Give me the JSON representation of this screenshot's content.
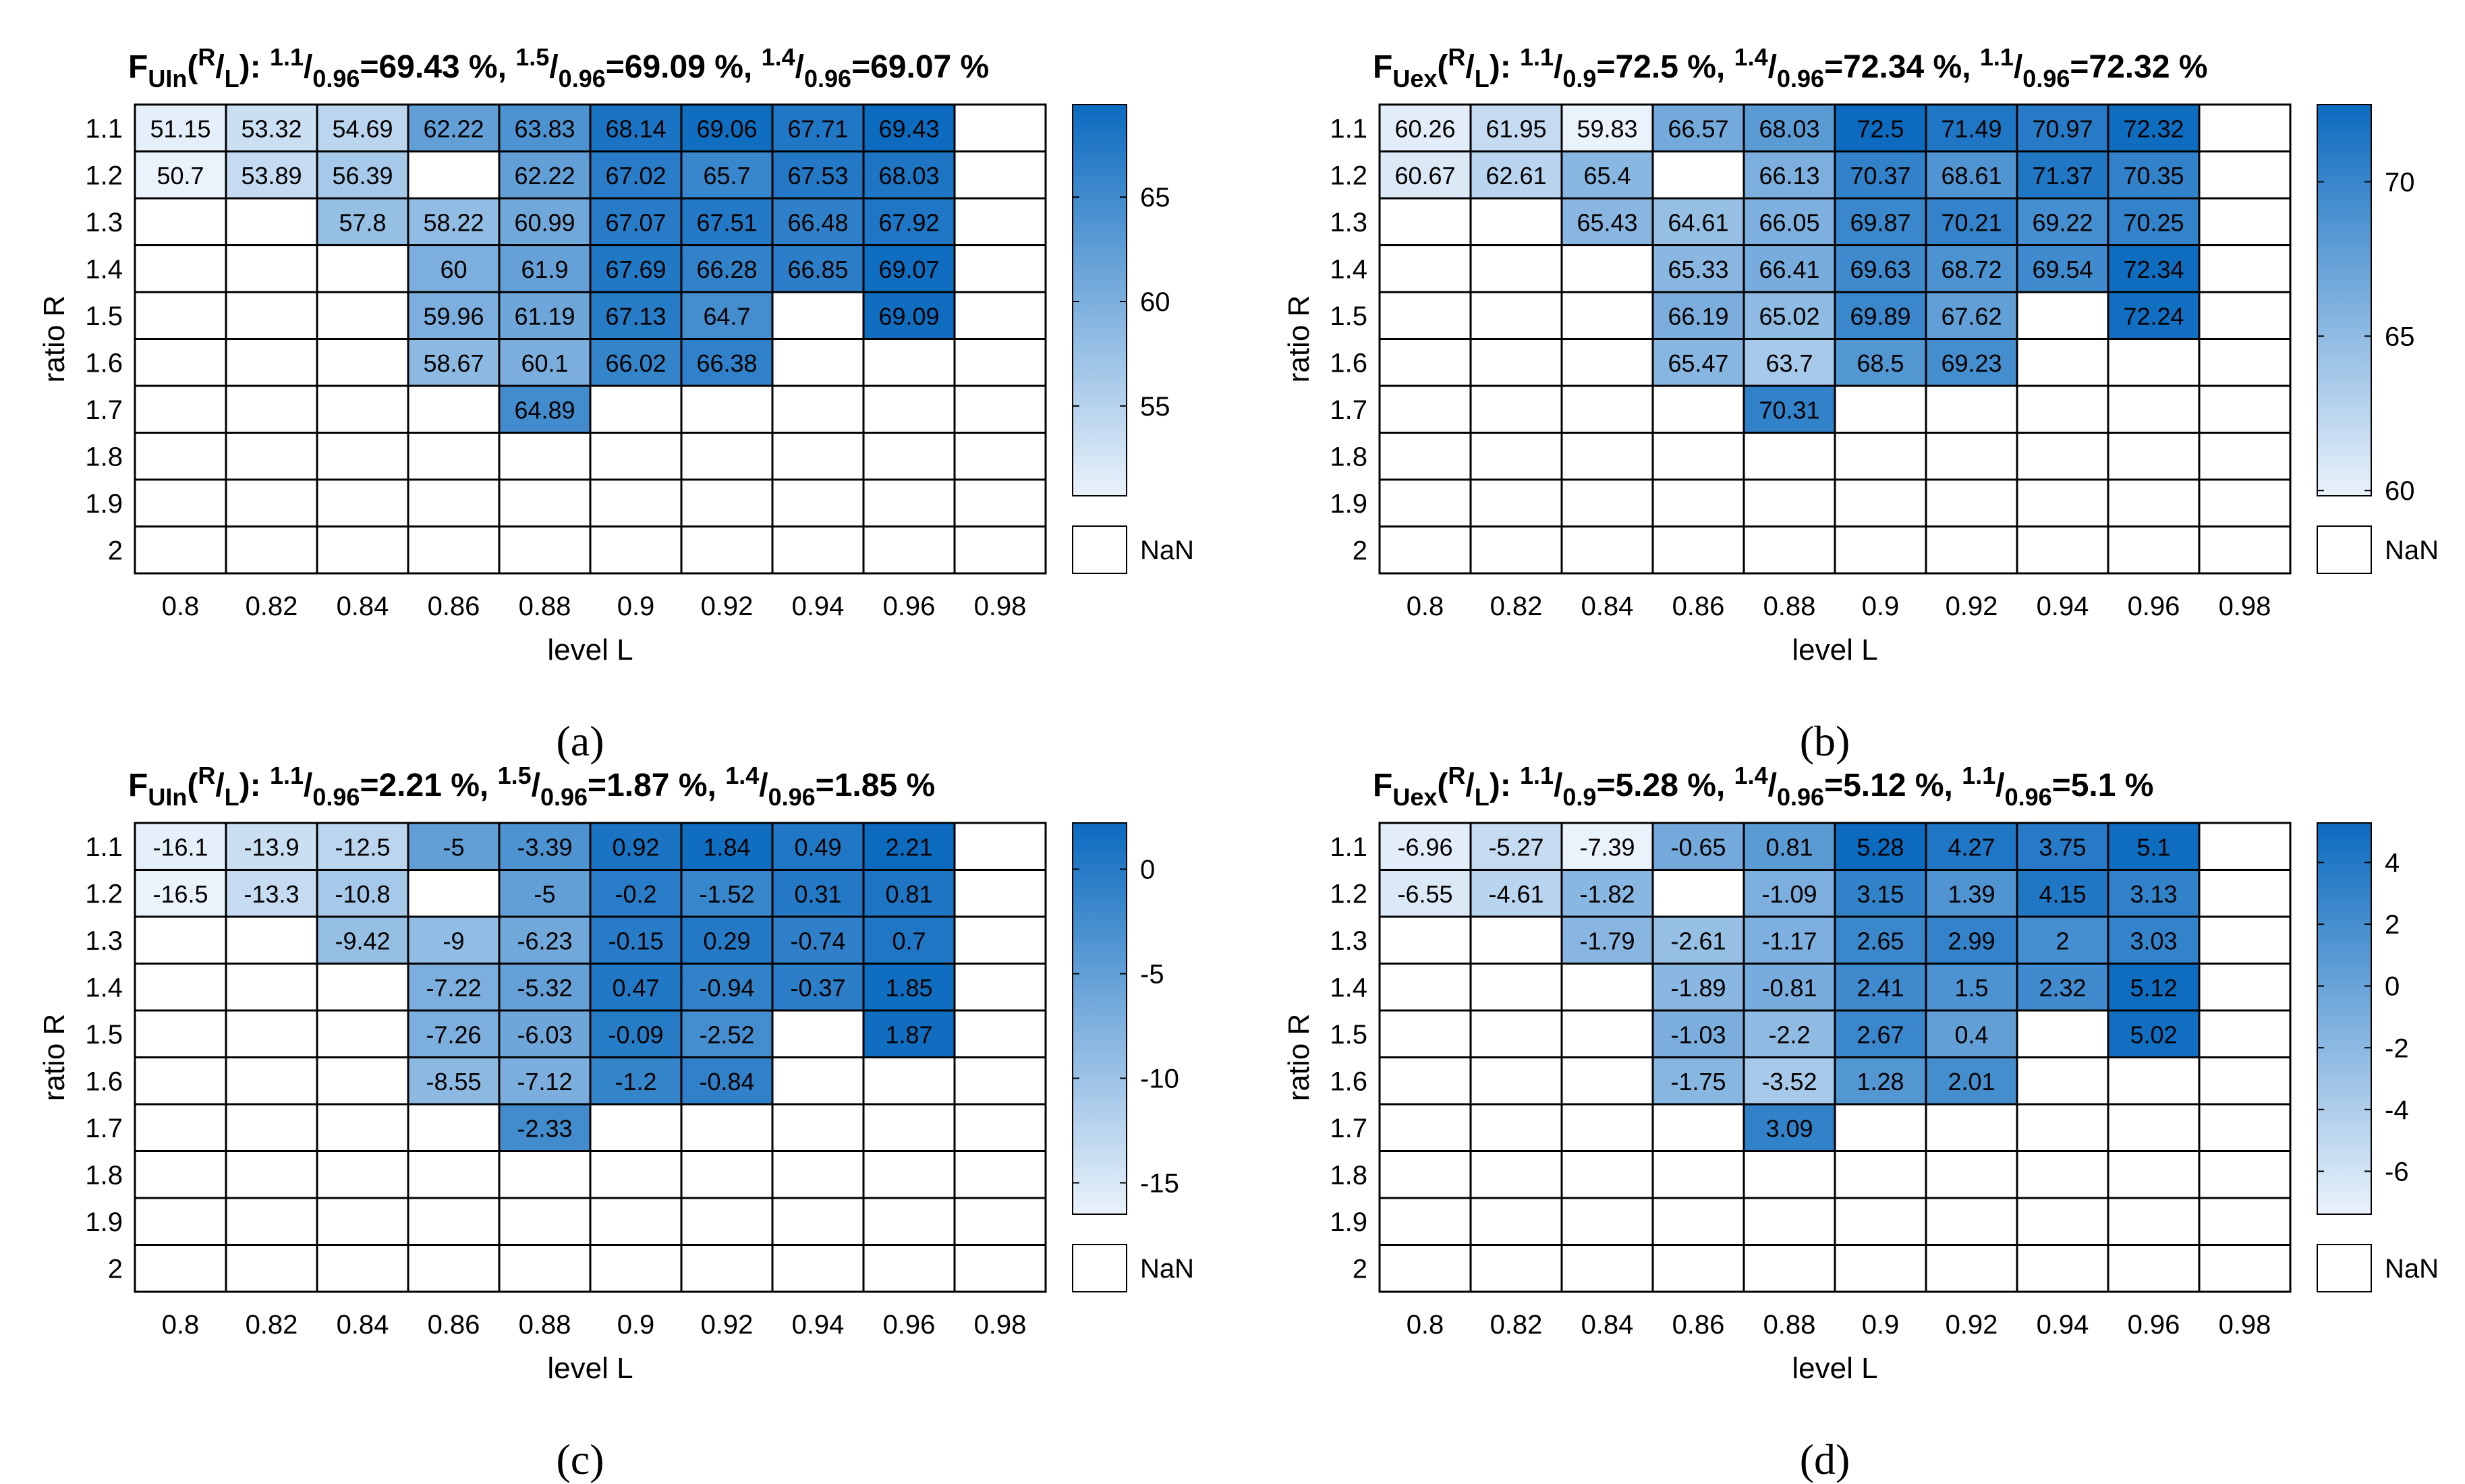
{
  "colors": {
    "light": "#eaf2fb",
    "dark": "#0c6bbf",
    "grid": "#000000",
    "nan": "#ffffff",
    "text_dark": "#000000",
    "text_light": "#ffffff"
  },
  "chart_data": [
    {
      "type": "heatmap",
      "panel": "(a)",
      "title_parts": [
        {
          "t": "F",
          "s": "normal"
        },
        {
          "t": "UIn",
          "s": "sub"
        },
        {
          "t": "(",
          "s": "normal"
        },
        {
          "t": "R",
          "s": "sup"
        },
        {
          "t": "/",
          "s": "normal"
        },
        {
          "t": "L",
          "s": "sub"
        },
        {
          "t": "): ",
          "s": "normal"
        },
        {
          "t": "1.1",
          "s": "sup"
        },
        {
          "t": "/",
          "s": "normal"
        },
        {
          "t": "0.96",
          "s": "sub"
        },
        {
          "t": "=69.43 %, ",
          "s": "normal"
        },
        {
          "t": "1.5",
          "s": "sup"
        },
        {
          "t": "/",
          "s": "normal"
        },
        {
          "t": "0.96",
          "s": "sub"
        },
        {
          "t": "=69.09 %, ",
          "s": "normal"
        },
        {
          "t": "1.4",
          "s": "sup"
        },
        {
          "t": "/",
          "s": "normal"
        },
        {
          "t": "0.96",
          "s": "sub"
        },
        {
          "t": "=69.07 %",
          "s": "normal"
        }
      ],
      "xlabel": "level L",
      "ylabel": "ratio R",
      "x_ticks": [
        "0.8",
        "0.82",
        "0.84",
        "0.86",
        "0.88",
        "0.9",
        "0.92",
        "0.94",
        "0.96",
        "0.98"
      ],
      "y_ticks": [
        "1.1",
        "1.2",
        "1.3",
        "1.4",
        "1.5",
        "1.6",
        "1.7",
        "1.8",
        "1.9",
        "2"
      ],
      "values": [
        [
          "51.15",
          "53.32",
          "54.69",
          "62.22",
          "63.83",
          "68.14",
          "69.06",
          "67.71",
          "69.43",
          null
        ],
        [
          "50.7",
          "53.89",
          "56.39",
          null,
          "62.22",
          "67.02",
          "65.7",
          "67.53",
          "68.03",
          null
        ],
        [
          null,
          null,
          "57.8",
          "58.22",
          "60.99",
          "67.07",
          "67.51",
          "66.48",
          "67.92",
          null
        ],
        [
          null,
          null,
          null,
          "60",
          "61.9",
          "67.69",
          "66.28",
          "66.85",
          "69.07",
          null
        ],
        [
          null,
          null,
          null,
          "59.96",
          "61.19",
          "67.13",
          "64.7",
          null,
          "69.09",
          null
        ],
        [
          null,
          null,
          null,
          "58.67",
          "60.1",
          "66.02",
          "66.38",
          null,
          null,
          null
        ],
        [
          null,
          null,
          null,
          null,
          "64.89",
          null,
          null,
          null,
          null,
          null
        ],
        [
          null,
          null,
          null,
          null,
          null,
          null,
          null,
          null,
          null,
          null
        ],
        [
          null,
          null,
          null,
          null,
          null,
          null,
          null,
          null,
          null,
          null
        ],
        [
          null,
          null,
          null,
          null,
          null,
          null,
          null,
          null,
          null,
          null
        ]
      ],
      "color_range": [
        50.7,
        69.43
      ],
      "colorbar_ticks": [
        "55",
        "60",
        "65"
      ],
      "nan_label": "NaN"
    },
    {
      "type": "heatmap",
      "panel": "(b)",
      "title_parts": [
        {
          "t": "F",
          "s": "normal"
        },
        {
          "t": "Uex",
          "s": "sub"
        },
        {
          "t": "(",
          "s": "normal"
        },
        {
          "t": "R",
          "s": "sup"
        },
        {
          "t": "/",
          "s": "normal"
        },
        {
          "t": "L",
          "s": "sub"
        },
        {
          "t": "): ",
          "s": "normal"
        },
        {
          "t": "1.1",
          "s": "sup"
        },
        {
          "t": "/",
          "s": "normal"
        },
        {
          "t": "0.9",
          "s": "sub"
        },
        {
          "t": "=72.5 %, ",
          "s": "normal"
        },
        {
          "t": "1.4",
          "s": "sup"
        },
        {
          "t": "/",
          "s": "normal"
        },
        {
          "t": "0.96",
          "s": "sub"
        },
        {
          "t": "=72.34 %, ",
          "s": "normal"
        },
        {
          "t": "1.1",
          "s": "sup"
        },
        {
          "t": "/",
          "s": "normal"
        },
        {
          "t": "0.96",
          "s": "sub"
        },
        {
          "t": "=72.32 %",
          "s": "normal"
        }
      ],
      "xlabel": "level L",
      "ylabel": "ratio R",
      "x_ticks": [
        "0.8",
        "0.82",
        "0.84",
        "0.86",
        "0.88",
        "0.9",
        "0.92",
        "0.94",
        "0.96",
        "0.98"
      ],
      "y_ticks": [
        "1.1",
        "1.2",
        "1.3",
        "1.4",
        "1.5",
        "1.6",
        "1.7",
        "1.8",
        "1.9",
        "2"
      ],
      "values": [
        [
          "60.26",
          "61.95",
          "59.83",
          "66.57",
          "68.03",
          "72.5",
          "71.49",
          "70.97",
          "72.32",
          null
        ],
        [
          "60.67",
          "62.61",
          "65.4",
          null,
          "66.13",
          "70.37",
          "68.61",
          "71.37",
          "70.35",
          null
        ],
        [
          null,
          null,
          "65.43",
          "64.61",
          "66.05",
          "69.87",
          "70.21",
          "69.22",
          "70.25",
          null
        ],
        [
          null,
          null,
          null,
          "65.33",
          "66.41",
          "69.63",
          "68.72",
          "69.54",
          "72.34",
          null
        ],
        [
          null,
          null,
          null,
          "66.19",
          "65.02",
          "69.89",
          "67.62",
          null,
          "72.24",
          null
        ],
        [
          null,
          null,
          null,
          "65.47",
          "63.7",
          "68.5",
          "69.23",
          null,
          null,
          null
        ],
        [
          null,
          null,
          null,
          null,
          "70.31",
          null,
          null,
          null,
          null,
          null
        ],
        [
          null,
          null,
          null,
          null,
          null,
          null,
          null,
          null,
          null,
          null
        ],
        [
          null,
          null,
          null,
          null,
          null,
          null,
          null,
          null,
          null,
          null
        ],
        [
          null,
          null,
          null,
          null,
          null,
          null,
          null,
          null,
          null,
          null
        ]
      ],
      "color_range": [
        59.83,
        72.5
      ],
      "colorbar_ticks": [
        "60",
        "65",
        "70"
      ],
      "nan_label": "NaN"
    },
    {
      "type": "heatmap",
      "panel": "(c)",
      "title_parts": [
        {
          "t": "F",
          "s": "normal"
        },
        {
          "t": "UIn",
          "s": "sub"
        },
        {
          "t": "(",
          "s": "normal"
        },
        {
          "t": "R",
          "s": "sup"
        },
        {
          "t": "/",
          "s": "normal"
        },
        {
          "t": "L",
          "s": "sub"
        },
        {
          "t": "): ",
          "s": "normal"
        },
        {
          "t": "1.1",
          "s": "sup"
        },
        {
          "t": "/",
          "s": "normal"
        },
        {
          "t": "0.96",
          "s": "sub"
        },
        {
          "t": "=2.21 %, ",
          "s": "normal"
        },
        {
          "t": "1.5",
          "s": "sup"
        },
        {
          "t": "/",
          "s": "normal"
        },
        {
          "t": "0.96",
          "s": "sub"
        },
        {
          "t": "=1.87 %, ",
          "s": "normal"
        },
        {
          "t": "1.4",
          "s": "sup"
        },
        {
          "t": "/",
          "s": "normal"
        },
        {
          "t": "0.96",
          "s": "sub"
        },
        {
          "t": "=1.85 %",
          "s": "normal"
        }
      ],
      "xlabel": "level L",
      "ylabel": "ratio R",
      "x_ticks": [
        "0.8",
        "0.82",
        "0.84",
        "0.86",
        "0.88",
        "0.9",
        "0.92",
        "0.94",
        "0.96",
        "0.98"
      ],
      "y_ticks": [
        "1.1",
        "1.2",
        "1.3",
        "1.4",
        "1.5",
        "1.6",
        "1.7",
        "1.8",
        "1.9",
        "2"
      ],
      "values": [
        [
          "-16.1",
          "-13.9",
          "-12.5",
          "-5",
          "-3.39",
          "0.92",
          "1.84",
          "0.49",
          "2.21",
          null
        ],
        [
          "-16.5",
          "-13.3",
          "-10.8",
          null,
          "-5",
          "-0.2",
          "-1.52",
          "0.31",
          "0.81",
          null
        ],
        [
          null,
          null,
          "-9.42",
          "-9",
          "-6.23",
          "-0.15",
          "0.29",
          "-0.74",
          "0.7",
          null
        ],
        [
          null,
          null,
          null,
          "-7.22",
          "-5.32",
          "0.47",
          "-0.94",
          "-0.37",
          "1.85",
          null
        ],
        [
          null,
          null,
          null,
          "-7.26",
          "-6.03",
          "-0.09",
          "-2.52",
          null,
          "1.87",
          null
        ],
        [
          null,
          null,
          null,
          "-8.55",
          "-7.12",
          "-1.2",
          "-0.84",
          null,
          null,
          null
        ],
        [
          null,
          null,
          null,
          null,
          "-2.33",
          null,
          null,
          null,
          null,
          null
        ],
        [
          null,
          null,
          null,
          null,
          null,
          null,
          null,
          null,
          null,
          null
        ],
        [
          null,
          null,
          null,
          null,
          null,
          null,
          null,
          null,
          null,
          null
        ],
        [
          null,
          null,
          null,
          null,
          null,
          null,
          null,
          null,
          null,
          null
        ]
      ],
      "color_range": [
        -16.5,
        2.21
      ],
      "colorbar_ticks": [
        "0",
        "-5",
        "-10",
        "-15"
      ],
      "nan_label": "NaN"
    },
    {
      "type": "heatmap",
      "panel": "(d)",
      "title_parts": [
        {
          "t": "F",
          "s": "normal"
        },
        {
          "t": "Uex",
          "s": "sub"
        },
        {
          "t": "(",
          "s": "normal"
        },
        {
          "t": "R",
          "s": "sup"
        },
        {
          "t": "/",
          "s": "normal"
        },
        {
          "t": "L",
          "s": "sub"
        },
        {
          "t": "): ",
          "s": "normal"
        },
        {
          "t": "1.1",
          "s": "sup"
        },
        {
          "t": "/",
          "s": "normal"
        },
        {
          "t": "0.9",
          "s": "sub"
        },
        {
          "t": "=5.28 %, ",
          "s": "normal"
        },
        {
          "t": "1.4",
          "s": "sup"
        },
        {
          "t": "/",
          "s": "normal"
        },
        {
          "t": "0.96",
          "s": "sub"
        },
        {
          "t": "=5.12 %, ",
          "s": "normal"
        },
        {
          "t": "1.1",
          "s": "sup"
        },
        {
          "t": "/",
          "s": "normal"
        },
        {
          "t": "0.96",
          "s": "sub"
        },
        {
          "t": "=5.1 %",
          "s": "normal"
        }
      ],
      "xlabel": "level L",
      "ylabel": "ratio R",
      "x_ticks": [
        "0.8",
        "0.82",
        "0.84",
        "0.86",
        "0.88",
        "0.9",
        "0.92",
        "0.94",
        "0.96",
        "0.98"
      ],
      "y_ticks": [
        "1.1",
        "1.2",
        "1.3",
        "1.4",
        "1.5",
        "1.6",
        "1.7",
        "1.8",
        "1.9",
        "2"
      ],
      "values": [
        [
          "-6.96",
          "-5.27",
          "-7.39",
          "-0.65",
          "0.81",
          "5.28",
          "4.27",
          "3.75",
          "5.1",
          null
        ],
        [
          "-6.55",
          "-4.61",
          "-1.82",
          null,
          "-1.09",
          "3.15",
          "1.39",
          "4.15",
          "3.13",
          null
        ],
        [
          null,
          null,
          "-1.79",
          "-2.61",
          "-1.17",
          "2.65",
          "2.99",
          "2",
          "3.03",
          null
        ],
        [
          null,
          null,
          null,
          "-1.89",
          "-0.81",
          "2.41",
          "1.5",
          "2.32",
          "5.12",
          null
        ],
        [
          null,
          null,
          null,
          "-1.03",
          "-2.2",
          "2.67",
          "0.4",
          null,
          "5.02",
          null
        ],
        [
          null,
          null,
          null,
          "-1.75",
          "-3.52",
          "1.28",
          "2.01",
          null,
          null,
          null
        ],
        [
          null,
          null,
          null,
          null,
          "3.09",
          null,
          null,
          null,
          null,
          null
        ],
        [
          null,
          null,
          null,
          null,
          null,
          null,
          null,
          null,
          null,
          null
        ],
        [
          null,
          null,
          null,
          null,
          null,
          null,
          null,
          null,
          null,
          null
        ],
        [
          null,
          null,
          null,
          null,
          null,
          null,
          null,
          null,
          null,
          null
        ]
      ],
      "color_range": [
        -7.39,
        5.28
      ],
      "colorbar_ticks": [
        "4",
        "2",
        "0",
        "-2",
        "-4",
        "-6"
      ],
      "nan_label": "NaN"
    }
  ]
}
